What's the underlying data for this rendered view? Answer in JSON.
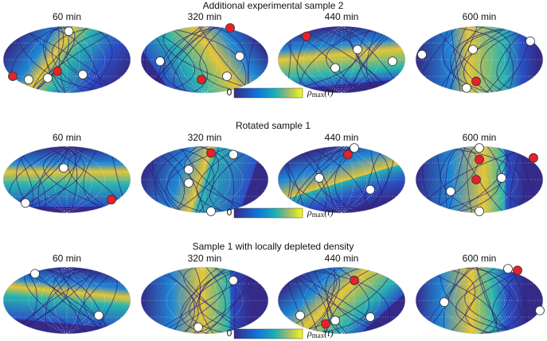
{
  "sections": [
    {
      "title": "Additional experimental sample 2",
      "panels": [
        "60 min",
        "320 min",
        "440 min",
        "600 min"
      ],
      "colorbar": {
        "min": "0",
        "symbol": "ρ",
        "subscript": "max",
        "argument": "(t)"
      }
    },
    {
      "title": "Rotated sample 1",
      "panels": [
        "60 min",
        "320 min",
        "440 min",
        "600 min"
      ],
      "colorbar": {
        "min": "0",
        "symbol": "ρ",
        "subscript": "max",
        "argument": "(t)"
      }
    },
    {
      "title": "Sample 1 with locally depleted density",
      "panels": [
        "60 min",
        "320 min",
        "440 min",
        "600 min"
      ],
      "colorbar": {
        "min": "0",
        "symbol": "ρ",
        "subscript": "max",
        "argument": "(t)"
      }
    }
  ]
}
